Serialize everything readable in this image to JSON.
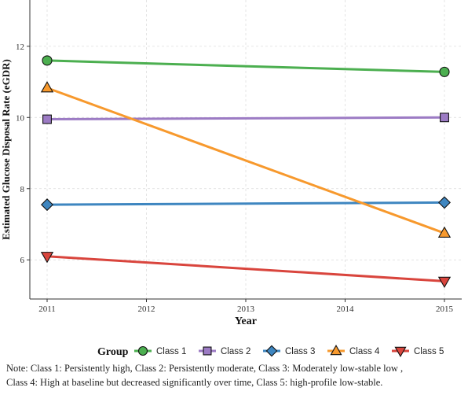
{
  "chart_data": {
    "type": "line",
    "xlabel": "Year",
    "ylabel": "Estimated Glucose Disposal Rate (eGDR)",
    "x_ticks": [
      "2011",
      "2012",
      "2013",
      "2014",
      "2015"
    ],
    "y_ticks": [
      "6",
      "8",
      "10",
      "12"
    ],
    "xlim": [
      2011,
      2015
    ],
    "ylim": [
      4.9,
      13.3
    ],
    "grid": true,
    "legend_title": "Group",
    "legend_position": "bottom",
    "series": [
      {
        "name": "Class 1",
        "x": [
          2011,
          2015
        ],
        "y": [
          11.6,
          11.28
        ],
        "color": "#4caf50",
        "marker": "circle"
      },
      {
        "name": "Class 2",
        "x": [
          2011,
          2015
        ],
        "y": [
          9.95,
          10.0
        ],
        "color": "#9c7bc4",
        "marker": "square"
      },
      {
        "name": "Class 3",
        "x": [
          2011,
          2015
        ],
        "y": [
          7.55,
          7.61
        ],
        "color": "#3e86c0",
        "marker": "diamond"
      },
      {
        "name": "Class 4",
        "x": [
          2011,
          2015
        ],
        "y": [
          10.83,
          6.75
        ],
        "color": "#f7992d",
        "marker": "triangle-up"
      },
      {
        "name": "Class 5",
        "x": [
          2011,
          2015
        ],
        "y": [
          6.1,
          5.4
        ],
        "color": "#d9453d",
        "marker": "triangle-down"
      }
    ]
  },
  "note": {
    "line1": "Note: Class 1: Persistently high, Class 2: Persistently moderate, Class 3: Moderately low-stable low ,",
    "line2": "Class 4: High at baseline but decreased significantly over time, Class 5: high-profile low-stable."
  }
}
